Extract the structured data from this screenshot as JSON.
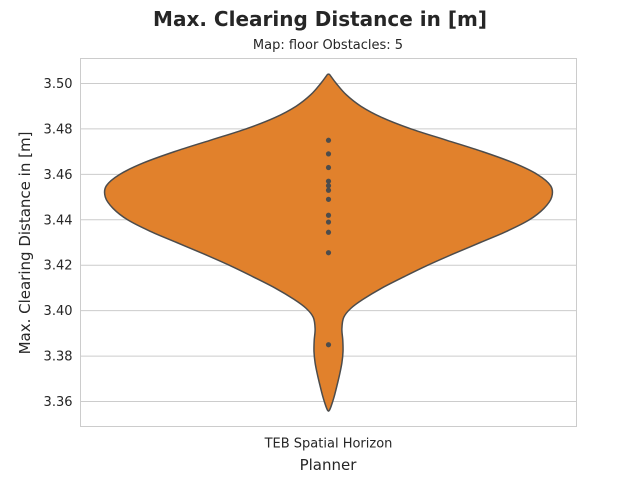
{
  "chart_data": {
    "type": "violin",
    "title": "Max. Clearing Distance in [m]",
    "subtitle": "Map: floor Obstacles: 5",
    "xlabel": "Planner",
    "ylabel": "Max. Clearing Distance in [m]",
    "categories": [
      "TEB Spatial Horizon"
    ],
    "ylim": [
      3.349,
      3.511
    ],
    "yticks": [
      3.36,
      3.38,
      3.4,
      3.42,
      3.44,
      3.46,
      3.48,
      3.5
    ],
    "ytick_labels": [
      "3.36",
      "3.38",
      "3.40",
      "3.42",
      "3.44",
      "3.46",
      "3.48",
      "3.50"
    ],
    "grid": true,
    "inner": "point",
    "series": [
      {
        "category": "TEB Spatial Horizon",
        "color": "#e1812c",
        "edge_color": "#4c4c4c",
        "points": [
          3.475,
          3.469,
          3.463,
          3.457,
          3.455,
          3.453,
          3.449,
          3.442,
          3.439,
          3.4345,
          3.4255,
          3.385
        ],
        "density_range": [
          3.356,
          3.504
        ],
        "density_profile": [
          [
            3.356,
            0.003
          ],
          [
            3.358,
            0.012
          ],
          [
            3.362,
            0.025
          ],
          [
            3.367,
            0.038
          ],
          [
            3.372,
            0.05
          ],
          [
            3.377,
            0.06
          ],
          [
            3.382,
            0.065
          ],
          [
            3.387,
            0.064
          ],
          [
            3.392,
            0.06
          ],
          [
            3.397,
            0.068
          ],
          [
            3.401,
            0.1
          ],
          [
            3.405,
            0.155
          ],
          [
            3.41,
            0.24
          ],
          [
            3.415,
            0.34
          ],
          [
            3.42,
            0.445
          ],
          [
            3.425,
            0.56
          ],
          [
            3.43,
            0.68
          ],
          [
            3.435,
            0.8
          ],
          [
            3.44,
            0.9
          ],
          [
            3.445,
            0.965
          ],
          [
            3.45,
            1.0
          ],
          [
            3.455,
            0.995
          ],
          [
            3.46,
            0.935
          ],
          [
            3.465,
            0.83
          ],
          [
            3.47,
            0.69
          ],
          [
            3.475,
            0.53
          ],
          [
            3.48,
            0.37
          ],
          [
            3.485,
            0.24
          ],
          [
            3.49,
            0.145
          ],
          [
            3.495,
            0.08
          ],
          [
            3.5,
            0.035
          ],
          [
            3.503,
            0.012
          ],
          [
            3.504,
            0.004
          ]
        ]
      }
    ]
  }
}
